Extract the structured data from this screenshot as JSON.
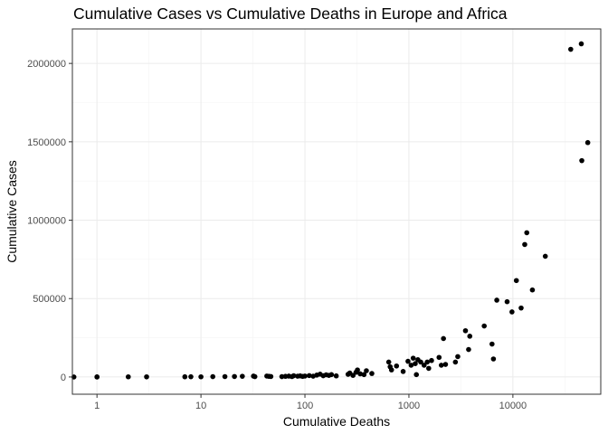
{
  "chart_data": {
    "type": "scatter",
    "title": "Cumulative Cases vs Cumulative Deaths in Europe and Africa",
    "xlabel": "Cumulative Deaths",
    "ylabel": "Cumulative Cases",
    "x_scale": "log10",
    "xlim": [
      0.58,
      70000
    ],
    "ylim": [
      -110000,
      2220000
    ],
    "x_ticks": [
      1,
      10,
      100,
      1000,
      10000
    ],
    "x_tick_labels": [
      "1",
      "10",
      "100",
      "1000",
      "10000"
    ],
    "y_ticks": [
      0,
      500000,
      1000000,
      1500000,
      2000000
    ],
    "y_tick_labels": [
      "0",
      "500000",
      "1000000",
      "1500000",
      "2000000"
    ],
    "grid": true,
    "point_color": "#000000",
    "points": [
      {
        "x": 0.6,
        "y": 0
      },
      {
        "x": 1,
        "y": 0
      },
      {
        "x": 1,
        "y": 500
      },
      {
        "x": 2,
        "y": 1000
      },
      {
        "x": 3,
        "y": 800
      },
      {
        "x": 7,
        "y": 1200
      },
      {
        "x": 8,
        "y": 1500
      },
      {
        "x": 10,
        "y": 1000
      },
      {
        "x": 13,
        "y": 2000
      },
      {
        "x": 17,
        "y": 2500
      },
      {
        "x": 21,
        "y": 3000
      },
      {
        "x": 25,
        "y": 4500
      },
      {
        "x": 32,
        "y": 5500
      },
      {
        "x": 33,
        "y": 2000
      },
      {
        "x": 43,
        "y": 6000
      },
      {
        "x": 45,
        "y": 4000
      },
      {
        "x": 47,
        "y": 3000
      },
      {
        "x": 60,
        "y": 2000
      },
      {
        "x": 65,
        "y": 4000
      },
      {
        "x": 70,
        "y": 5500
      },
      {
        "x": 75,
        "y": 2500
      },
      {
        "x": 78,
        "y": 8000
      },
      {
        "x": 85,
        "y": 5000
      },
      {
        "x": 90,
        "y": 7000
      },
      {
        "x": 95,
        "y": 3500
      },
      {
        "x": 100,
        "y": 6000
      },
      {
        "x": 110,
        "y": 9000
      },
      {
        "x": 120,
        "y": 5000
      },
      {
        "x": 130,
        "y": 12000
      },
      {
        "x": 140,
        "y": 18000
      },
      {
        "x": 150,
        "y": 8000
      },
      {
        "x": 160,
        "y": 14000
      },
      {
        "x": 170,
        "y": 10000
      },
      {
        "x": 180,
        "y": 15000
      },
      {
        "x": 200,
        "y": 7000
      },
      {
        "x": 260,
        "y": 17000
      },
      {
        "x": 270,
        "y": 25000
      },
      {
        "x": 290,
        "y": 10000
      },
      {
        "x": 310,
        "y": 30000
      },
      {
        "x": 320,
        "y": 45000
      },
      {
        "x": 340,
        "y": 20000
      },
      {
        "x": 370,
        "y": 15000
      },
      {
        "x": 390,
        "y": 40000
      },
      {
        "x": 440,
        "y": 22000
      },
      {
        "x": 640,
        "y": 95000
      },
      {
        "x": 660,
        "y": 65000
      },
      {
        "x": 680,
        "y": 45000
      },
      {
        "x": 760,
        "y": 70000
      },
      {
        "x": 880,
        "y": 35000
      },
      {
        "x": 980,
        "y": 100000
      },
      {
        "x": 1050,
        "y": 75000
      },
      {
        "x": 1100,
        "y": 120000
      },
      {
        "x": 1150,
        "y": 85000
      },
      {
        "x": 1180,
        "y": 15000
      },
      {
        "x": 1220,
        "y": 110000
      },
      {
        "x": 1300,
        "y": 95000
      },
      {
        "x": 1400,
        "y": 75000
      },
      {
        "x": 1500,
        "y": 95000
      },
      {
        "x": 1550,
        "y": 55000
      },
      {
        "x": 1650,
        "y": 105000
      },
      {
        "x": 1950,
        "y": 125000
      },
      {
        "x": 2050,
        "y": 75000
      },
      {
        "x": 2150,
        "y": 245000
      },
      {
        "x": 2250,
        "y": 80000
      },
      {
        "x": 2800,
        "y": 95000
      },
      {
        "x": 2950,
        "y": 130000
      },
      {
        "x": 3500,
        "y": 295000
      },
      {
        "x": 3750,
        "y": 175000
      },
      {
        "x": 3850,
        "y": 260000
      },
      {
        "x": 5300,
        "y": 325000
      },
      {
        "x": 6300,
        "y": 210000
      },
      {
        "x": 6500,
        "y": 115000
      },
      {
        "x": 7000,
        "y": 490000
      },
      {
        "x": 8800,
        "y": 480000
      },
      {
        "x": 9800,
        "y": 415000
      },
      {
        "x": 10800,
        "y": 615000
      },
      {
        "x": 12000,
        "y": 440000
      },
      {
        "x": 13000,
        "y": 845000
      },
      {
        "x": 13600,
        "y": 920000
      },
      {
        "x": 15400,
        "y": 555000
      },
      {
        "x": 20500,
        "y": 770000
      },
      {
        "x": 36000,
        "y": 2090000
      },
      {
        "x": 45500,
        "y": 2125000
      },
      {
        "x": 46000,
        "y": 1380000
      },
      {
        "x": 52500,
        "y": 1495000
      }
    ]
  }
}
